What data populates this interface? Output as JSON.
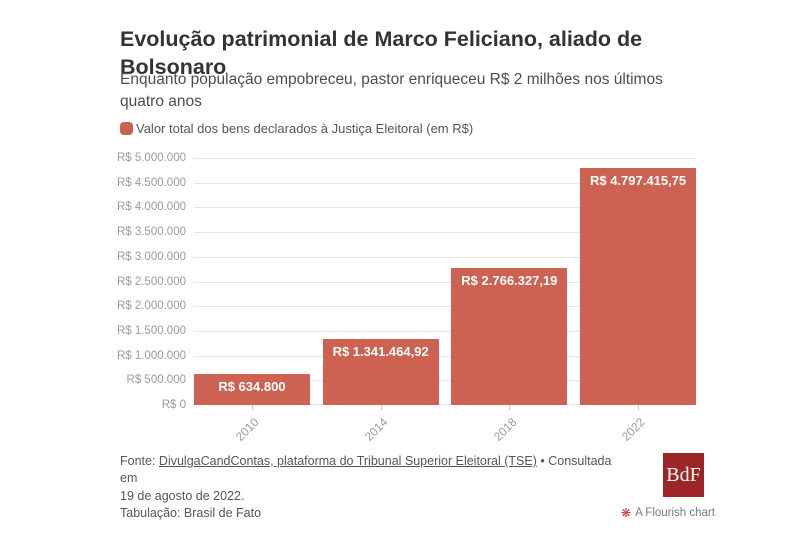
{
  "header": {
    "title": "Evolução patrimonial de Marco Feliciano, aliado de Bolsonaro",
    "subtitle": "Enquanto população empobreceu, pastor enriqueceu R$ 2 milhões nos últimos quatro anos"
  },
  "legend": {
    "label": "Valor total dos bens declarados à Justiça Eleitoral (em R$)",
    "swatch_color": "#cd6152"
  },
  "chart_data": {
    "type": "bar",
    "title": "Evolução patrimonial de Marco Feliciano, aliado de Bolsonaro",
    "xlabel": "",
    "ylabel": "",
    "categories": [
      "2010",
      "2014",
      "2018",
      "2022"
    ],
    "series": [
      {
        "name": "Valor total dos bens declarados à Justiça Eleitoral (em R$)",
        "values": [
          634800,
          1341464.92,
          2766327.19,
          4797415.75
        ],
        "value_labels": [
          "R$ 634.800",
          "R$ 1.341.464,92",
          "R$ 2.766.327,19",
          "R$ 4.797.415,75"
        ]
      }
    ],
    "ylim": [
      0,
      5000000
    ],
    "y_ticks": [
      "R$ 0",
      "R$ 500.000",
      "R$ 1.000.000",
      "R$ 1.500.000",
      "R$ 2.000.000",
      "R$ 2.500.000",
      "R$ 3.000.000",
      "R$ 3.500.000",
      "R$ 4.000.000",
      "R$ 4.500.000",
      "R$ 5.000.000"
    ],
    "grid": true,
    "legend_position": "top-left",
    "bar_color": "#cd6152"
  },
  "footer": {
    "source_prefix": "Fonte: ",
    "source_link": "DivulgaCandContas, plataforma do Tribunal Superior Eleitoral (TSE)",
    "source_suffix": " • Consultada em",
    "source_line2": "19 de agosto de 2022.",
    "tabulation": "Tabulação: Brasil de Fato",
    "logo_text": "BdF",
    "attribution": "A Flourish chart",
    "attribution_icon": "❋"
  }
}
